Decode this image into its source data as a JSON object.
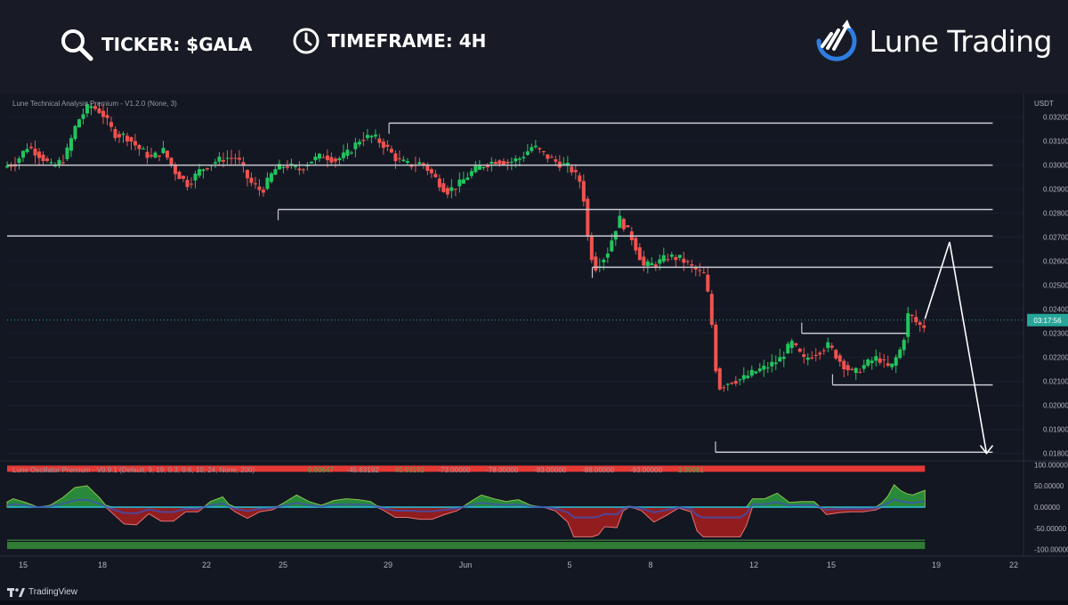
{
  "header": {
    "ticker_text": "TICKER: $GALA",
    "timeframe_text": "TIMEFRAME: 4H",
    "brand_name": "Lune Trading",
    "icons": {
      "ticker": "search-icon",
      "timeframe": "clock-icon",
      "brand": "lune-logo-icon"
    }
  },
  "chart_data": {
    "type": "candlestick",
    "indicator_label": "Lune Technical Analysis Premium - V1.2.0 (None, 3)",
    "currency_label": "USDT",
    "y_ticks": [
      "0.03200",
      "0.03100",
      "0.03000",
      "0.02900",
      "0.02800",
      "0.02700",
      "0.02600",
      "0.02500",
      "0.02400",
      "0.02300",
      "0.02200",
      "0.02100",
      "0.02000",
      "0.01900",
      "0.01800"
    ],
    "ylim": [
      0.0178,
      0.0328
    ],
    "x_ticks": [
      "15",
      "18",
      "22",
      "25",
      "29",
      "Jun",
      "5",
      "8",
      "12",
      "15",
      "19",
      "22"
    ],
    "current_price_label": "03:17:56",
    "current_price": 0.02355,
    "price_path": [
      [
        0,
        0.0299
      ],
      [
        2,
        0.0301
      ],
      [
        4,
        0.0308
      ],
      [
        6,
        0.0304
      ],
      [
        8,
        0.0299
      ],
      [
        10,
        0.0303
      ],
      [
        12,
        0.0318
      ],
      [
        14,
        0.0325
      ],
      [
        16,
        0.0322
      ],
      [
        18,
        0.0313
      ],
      [
        20,
        0.0312
      ],
      [
        22,
        0.0307
      ],
      [
        24,
        0.0303
      ],
      [
        26,
        0.0306
      ],
      [
        28,
        0.0297
      ],
      [
        30,
        0.0292
      ],
      [
        32,
        0.0298
      ],
      [
        34,
        0.0301
      ],
      [
        36,
        0.0303
      ],
      [
        38,
        0.0303
      ],
      [
        40,
        0.0293
      ],
      [
        42,
        0.0289
      ],
      [
        44,
        0.0298
      ],
      [
        46,
        0.03
      ],
      [
        48,
        0.0298
      ],
      [
        50,
        0.0302
      ],
      [
        52,
        0.0304
      ],
      [
        54,
        0.0302
      ],
      [
        56,
        0.0305
      ],
      [
        58,
        0.0311
      ],
      [
        60,
        0.0312
      ],
      [
        62,
        0.0308
      ],
      [
        64,
        0.0302
      ],
      [
        66,
        0.03
      ],
      [
        68,
        0.0301
      ],
      [
        70,
        0.0295
      ],
      [
        72,
        0.0289
      ],
      [
        74,
        0.0292
      ],
      [
        76,
        0.0297
      ],
      [
        78,
        0.03
      ],
      [
        80,
        0.0302
      ],
      [
        82,
        0.0301
      ],
      [
        84,
        0.0303
      ],
      [
        86,
        0.0308
      ],
      [
        88,
        0.0304
      ],
      [
        90,
        0.0301
      ],
      [
        92,
        0.0299
      ],
      [
        94,
        0.0292
      ],
      [
        95,
        0.0268
      ],
      [
        96,
        0.0257
      ],
      [
        98,
        0.0263
      ],
      [
        100,
        0.0278
      ],
      [
        102,
        0.027
      ],
      [
        104,
        0.0258
      ],
      [
        106,
        0.0259
      ],
      [
        108,
        0.0262
      ],
      [
        110,
        0.0261
      ],
      [
        112,
        0.0257
      ],
      [
        114,
        0.0254
      ],
      [
        115,
        0.0235
      ],
      [
        116,
        0.0207
      ],
      [
        118,
        0.021
      ],
      [
        120,
        0.0211
      ],
      [
        122,
        0.0214
      ],
      [
        124,
        0.0216
      ],
      [
        126,
        0.0219
      ],
      [
        128,
        0.0226
      ],
      [
        130,
        0.0219
      ],
      [
        132,
        0.0222
      ],
      [
        134,
        0.0225
      ],
      [
        136,
        0.0218
      ],
      [
        138,
        0.0213
      ],
      [
        140,
        0.0217
      ],
      [
        142,
        0.022
      ],
      [
        144,
        0.0215
      ],
      [
        146,
        0.0225
      ],
      [
        147,
        0.0239
      ],
      [
        148,
        0.0235
      ],
      [
        149,
        0.0233
      ]
    ],
    "horizontal_levels": [
      {
        "value": 0.03175,
        "x_start": 62
      },
      {
        "value": 0.03,
        "x_start": 0
      },
      {
        "value": 0.02815,
        "x_start": 44
      },
      {
        "value": 0.02705,
        "x_start": 0
      },
      {
        "value": 0.02575,
        "x_start": 95
      },
      {
        "value": 0.023,
        "x_start": 129,
        "x_end": 146
      },
      {
        "value": 0.02085,
        "x_start": 134
      },
      {
        "value": 0.01805,
        "x_start": 115
      }
    ],
    "projection": [
      [
        149,
        0.0236
      ],
      [
        153,
        0.0268
      ],
      [
        159,
        0.018
      ]
    ],
    "oscillator": {
      "label": "Lune Oscillator Premium - V0.9.1 (Default, 9, 19, 0.3, 0.6, 10, 24, None, 200)",
      "label_values": [
        "0.00647",
        "-45.63192",
        "45.63192",
        "-73.00000",
        "-78.00000",
        "-83.00000",
        "-88.00000",
        "-93.00000",
        "1.30981"
      ],
      "y_ticks": [
        "100.00000",
        "50.00000",
        "0.00000",
        "-50.00000",
        "-100.00000"
      ],
      "ylim": [
        -105,
        105
      ]
    },
    "x_range": [
      0,
      165
    ]
  },
  "footer": {
    "tradingview": "TradingView"
  },
  "colors": {
    "up": "#26a69a",
    "up_bright": "#22c55e",
    "down": "#ef5350",
    "level": "#c8cad0",
    "current_price": "#26a69a",
    "brand_blue": "#2f7de1"
  }
}
